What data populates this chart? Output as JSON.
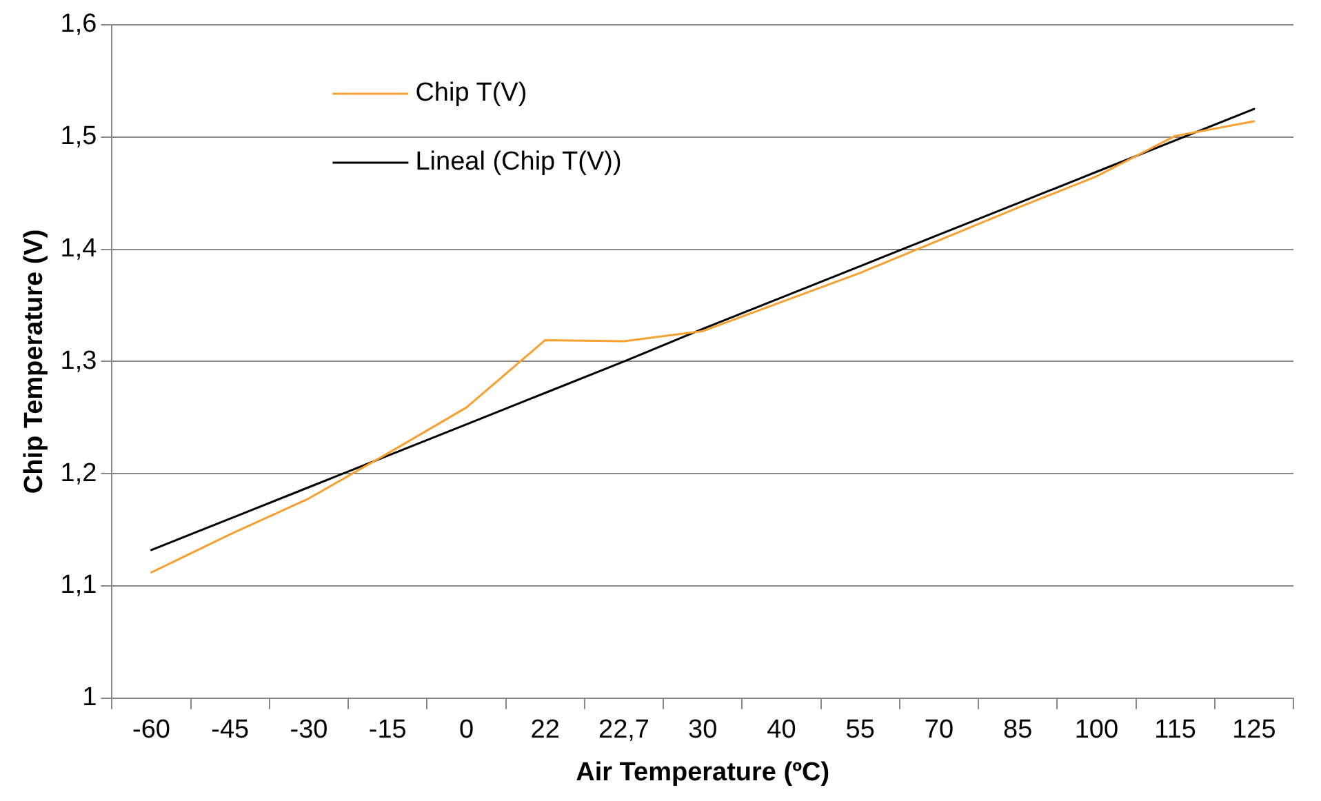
{
  "chart_data": {
    "type": "line",
    "xlabel": "Air Temperature (ºC)",
    "ylabel": "Chip Temperature (V)",
    "categories": [
      "-60",
      "-45",
      "-30",
      "-15",
      "0",
      "22",
      "22,7",
      "30",
      "40",
      "55",
      "70",
      "85",
      "100",
      "115",
      "125"
    ],
    "series": [
      {
        "name": "Chip T(V)",
        "color": "#f5a030",
        "values": [
          1.112,
          1.146,
          1.178,
          1.218,
          1.259,
          1.319,
          1.318,
          1.327,
          1.353,
          1.379,
          1.408,
          1.437,
          1.465,
          1.501,
          1.514
        ]
      },
      {
        "name": "Lineal (Chip T(V))",
        "type": "line",
        "color": "#000000",
        "values": [
          1.132,
          1.16,
          1.188,
          1.216,
          1.244,
          1.272,
          1.3,
          1.329,
          1.357,
          1.385,
          1.413,
          1.441,
          1.469,
          1.497,
          1.525
        ]
      }
    ],
    "ylim": [
      1,
      1.6
    ],
    "yticks": [
      1,
      {
        "value": 1.1,
        "label": "1,1"
      },
      {
        "value": 1.2,
        "label": "1,2"
      },
      {
        "value": 1.3,
        "label": "1,3"
      },
      {
        "value": 1.4,
        "label": "1,4"
      },
      {
        "value": 1.5,
        "label": "1,5"
      },
      {
        "value": 1.6,
        "label": "1,6"
      }
    ],
    "grid": "y",
    "legend": "top left",
    "marker": "none"
  }
}
